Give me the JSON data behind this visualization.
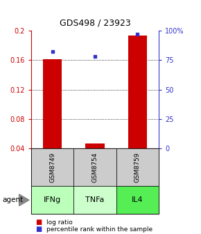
{
  "title": "GDS498 / 23923",
  "samples": [
    "GSM8749",
    "GSM8754",
    "GSM8759"
  ],
  "agents": [
    "IFNg",
    "TNFa",
    "IL4"
  ],
  "log_ratios": [
    0.161,
    0.047,
    0.193
  ],
  "percentile_ranks_pct": [
    82,
    78,
    97
  ],
  "ylim_left": [
    0.04,
    0.2
  ],
  "ylim_right": [
    0,
    100
  ],
  "yticks_left": [
    0.04,
    0.08,
    0.12,
    0.16,
    0.2
  ],
  "yticks_right": [
    0,
    25,
    50,
    75,
    100
  ],
  "ytick_labels_left": [
    "0.04",
    "0.08",
    "0.12",
    "0.16",
    "0.2"
  ],
  "ytick_labels_right": [
    "0",
    "25",
    "50",
    "75",
    "100%"
  ],
  "bar_color": "#cc0000",
  "dot_color": "#3333cc",
  "bar_width": 0.45,
  "sample_bg_color": "#cccccc",
  "agent_colors": [
    "#bbffbb",
    "#ccffcc",
    "#55ee55"
  ],
  "left_axis_color": "#cc0000",
  "right_axis_color": "#3333cc",
  "legend_log_color": "#cc0000",
  "legend_pct_color": "#3333cc"
}
